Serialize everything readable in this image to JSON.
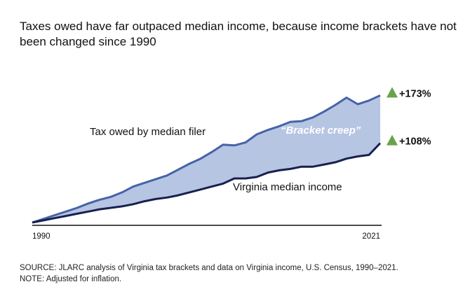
{
  "title": "Taxes owed have far outpaced median income, because income brackets have not been changed since 1990",
  "chart_data": {
    "type": "area",
    "x": [
      1990,
      1991,
      1992,
      1993,
      1994,
      1995,
      1996,
      1997,
      1998,
      1999,
      2000,
      2001,
      2002,
      2003,
      2004,
      2005,
      2006,
      2007,
      2008,
      2009,
      2010,
      2011,
      2012,
      2013,
      2014,
      2015,
      2016,
      2017,
      2018,
      2019,
      2020,
      2021
    ],
    "xlim": [
      1990,
      2021
    ],
    "ylim": [
      0,
      200
    ],
    "x_tick_labels": [
      "1990",
      "2021"
    ],
    "series": [
      {
        "name": "Tax owed by median filer",
        "values": [
          0,
          5,
          10,
          15,
          20,
          26,
          31,
          35,
          41,
          49,
          54,
          59,
          64,
          72,
          80,
          87,
          96,
          106,
          105,
          109,
          120,
          126,
          131,
          137,
          138,
          143,
          151,
          160,
          170,
          161,
          166,
          173
        ]
      },
      {
        "name": "Virginia median income",
        "values": [
          0,
          3,
          6,
          9,
          12,
          15,
          18,
          20,
          22,
          25,
          29,
          32,
          34,
          37,
          41,
          45,
          49,
          53,
          60,
          60,
          62,
          68,
          71,
          73,
          76,
          76,
          79,
          82,
          87,
          90,
          92,
          108
        ]
      }
    ],
    "shaded_region_label": "“Bracket creep”",
    "end_labels": [
      "+173%",
      "+108%"
    ],
    "colors": {
      "tax_line": "#4563a8",
      "income_line": "#17204f",
      "fill": "#b6c5e2",
      "shaded_text": "#ffffff",
      "marker": "#6aa24a",
      "axis": "#111111"
    },
    "grid": false,
    "legend": "inline labels"
  },
  "footer": {
    "source": "SOURCE: JLARC analysis of Virginia tax brackets and data on Virginia income, U.S. Census, 1990–2021.",
    "note": "NOTE: Adjusted for inflation."
  }
}
